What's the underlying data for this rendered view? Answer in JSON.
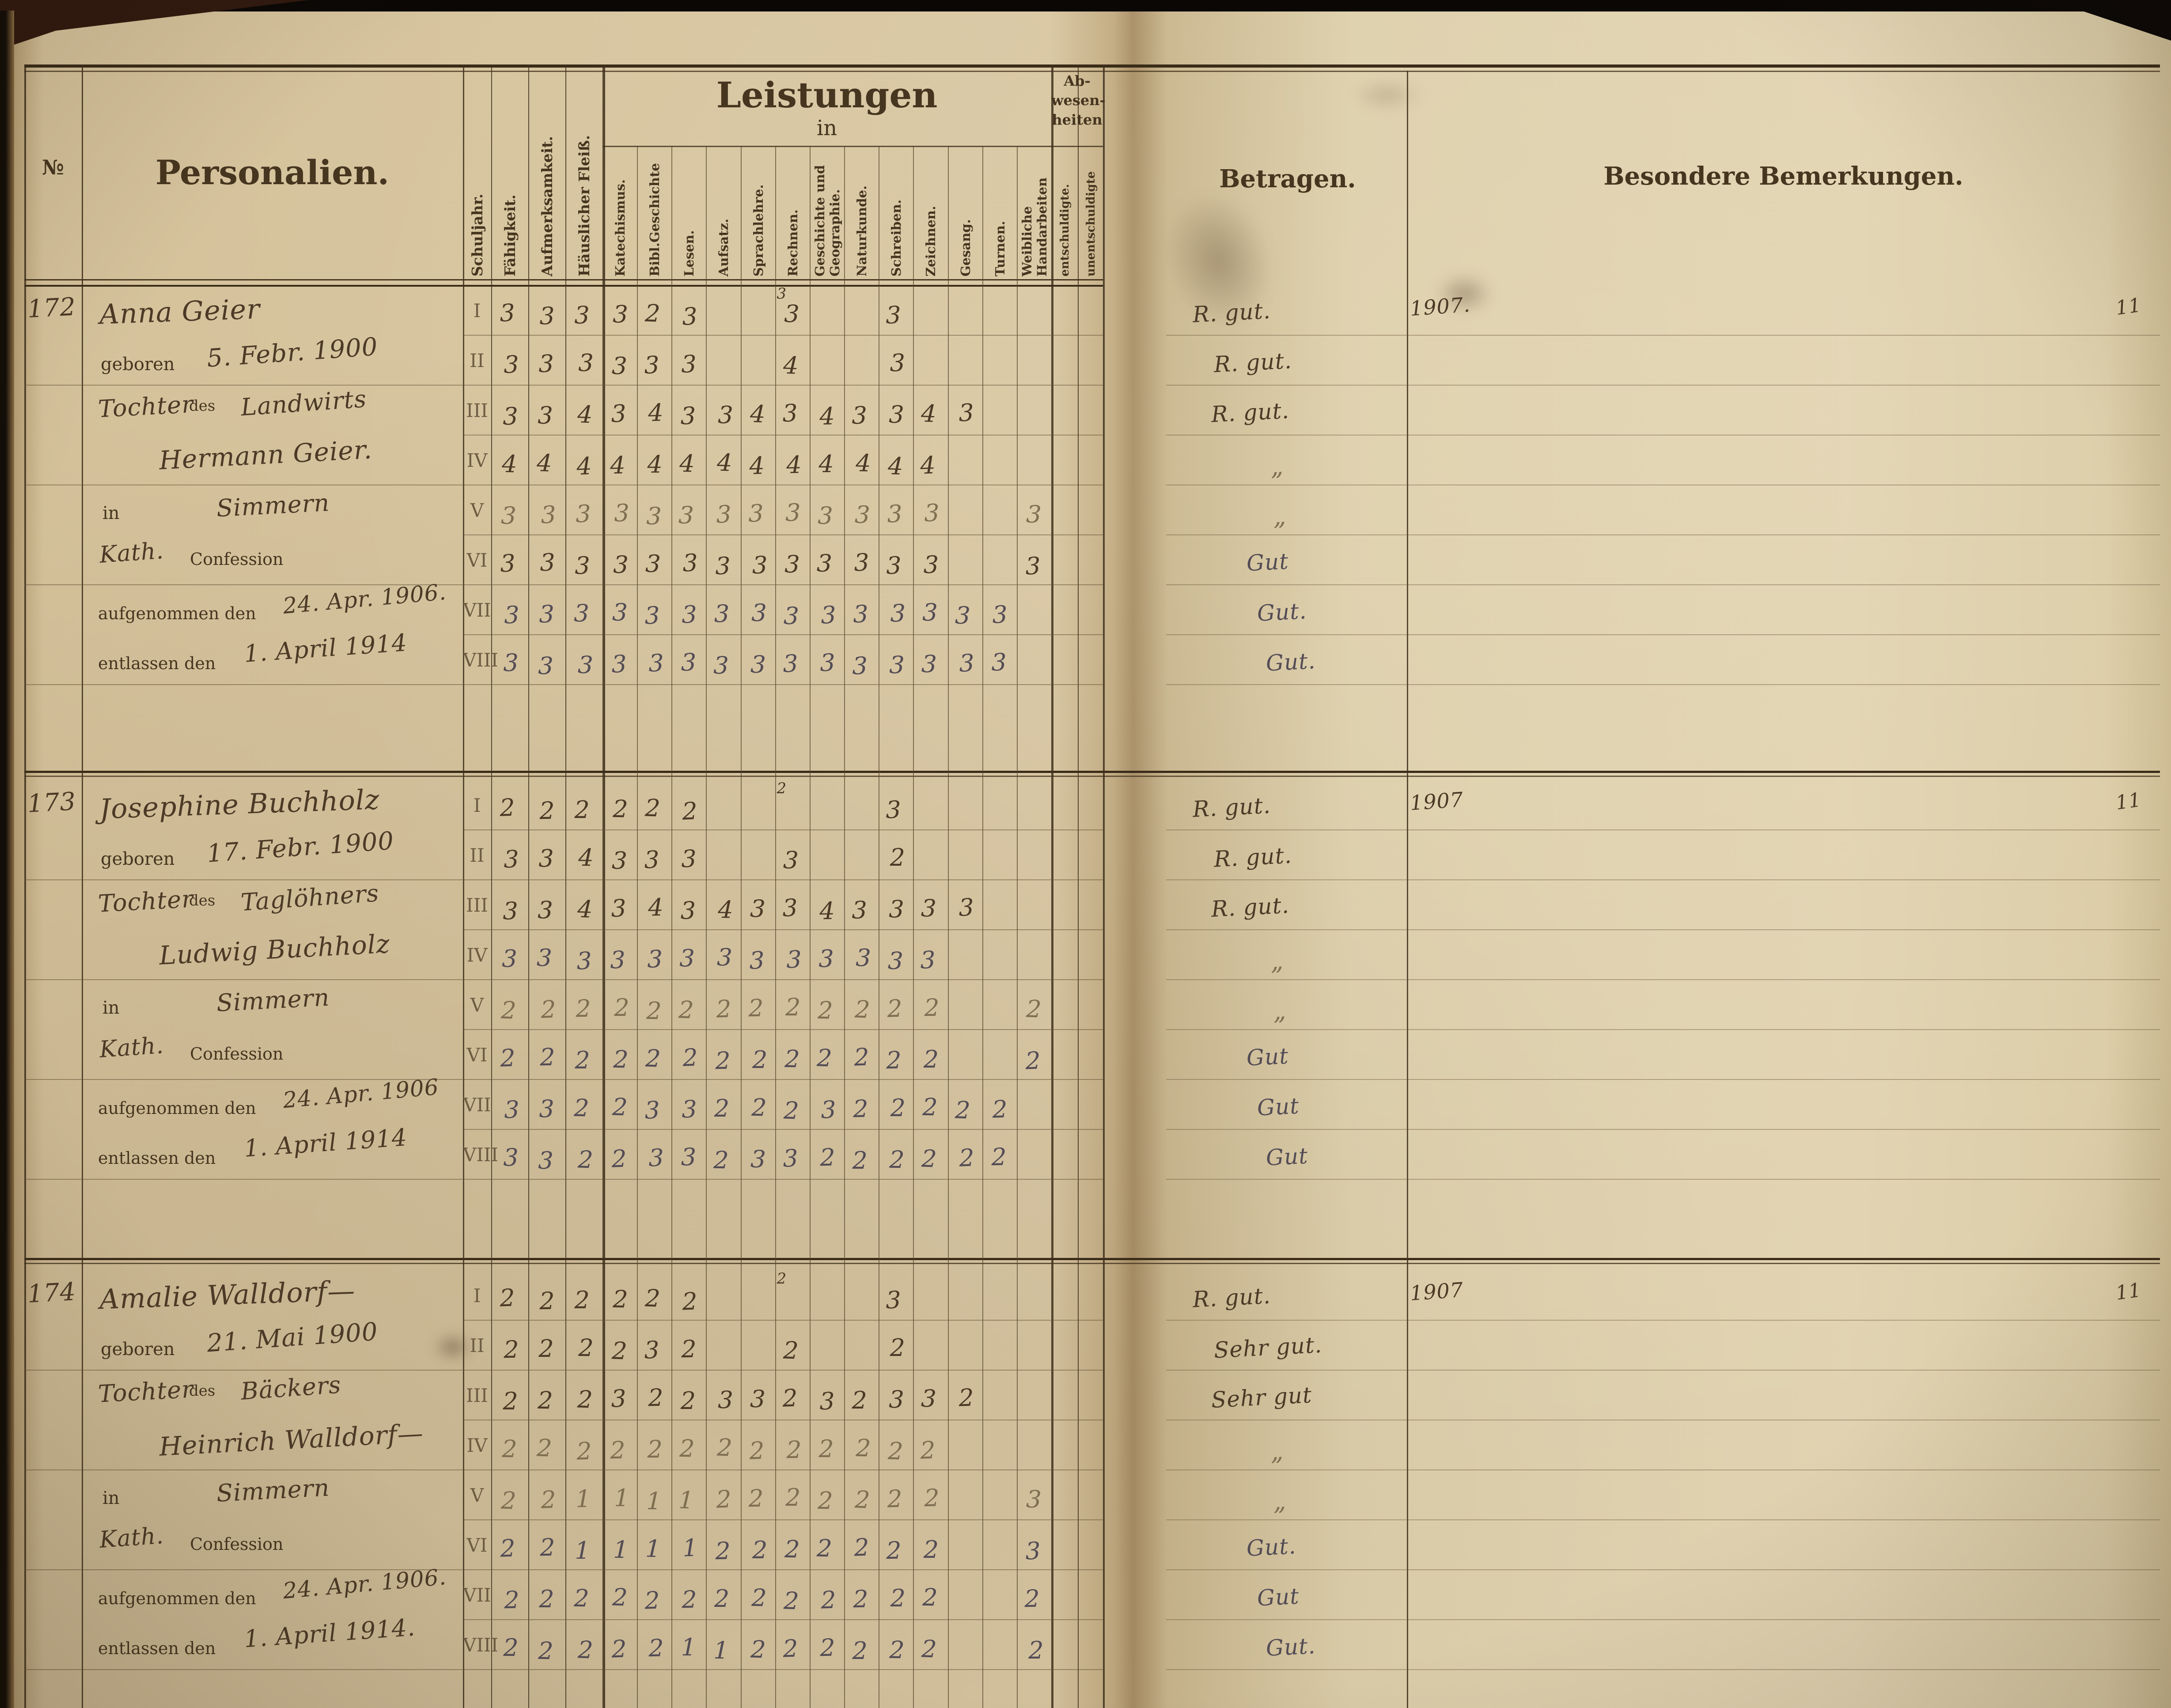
{
  "header": {
    "no": "№",
    "personalien": "Personalien.",
    "left_rotated": [
      "Schuljahr.",
      "Fähigkeit.",
      "Aufmerksamkeit.",
      "Häuslicher Fleiß."
    ],
    "leistungen": "Leistungen",
    "leistungen_in": "in",
    "subjects": [
      "Katechismus.",
      "Bibl.Geschichte",
      "Lesen.",
      "Aufsatz.",
      "Sprachlehre.",
      "Rechnen.",
      "Geschichte und Geographie.",
      "Naturkunde.",
      "Schreiben.",
      "Zeichnen.",
      "Gesang.",
      "Turnen.",
      "Weibliche Handarbeiten"
    ],
    "abwesenheiten_lines": [
      "Ab-",
      "wesen-",
      "heiten"
    ],
    "abw_subcolumns": [
      "entschuldigte.",
      "unentschuldigte"
    ],
    "betragen": "Betragen.",
    "bemerkungen": "Besondere Bemerkungen."
  },
  "block_labels": {
    "geboren": "geboren",
    "des": "des",
    "in": "in",
    "confession": "Confession",
    "aufgenommen": "aufgenommen den",
    "entlassen": "entlassen den"
  },
  "schuljahre": [
    "I",
    "II",
    "III",
    "IV",
    "V",
    "VI",
    "VII",
    "VIII"
  ],
  "colors": {
    "paper": "#d9c7a3",
    "paper_right": "#e0d2b0",
    "ink_sepia": "#4c3926",
    "ink_slate": "#534c55",
    "ink_faded": "#806e52",
    "print": "#46351f",
    "line": "#5f4c30"
  },
  "students": [
    {
      "no": "172",
      "name": "Anna Geier",
      "geboren": "5. Febr. 1900",
      "kind": "Tochter",
      "beruf": "Landwirts",
      "vater": "Hermann Geier.",
      "ort": "Simmern",
      "konfession": "Kath.",
      "aufgenommen": "24. Apr. 1906.",
      "entlassen": "1. April 1914",
      "jahr_vermerk": "1907.",
      "rand_vermerk": "11",
      "betragen": [
        "R. gut.",
        "R. gut.",
        "R. gut.",
        "„",
        "„",
        "Gut",
        "Gut.",
        "Gut."
      ],
      "grades": [
        {
          "sj": "I",
          "ink": "sepia",
          "sup": {
            "col": 8,
            "v": "3"
          },
          "cells": [
            "3",
            "3",
            "3",
            "3",
            "2",
            "3",
            "",
            "",
            "3",
            "",
            "",
            "3",
            "",
            "",
            "",
            ""
          ]
        },
        {
          "sj": "II",
          "ink": "sepia",
          "cells": [
            "3",
            "3",
            "3",
            "3",
            "3",
            "3",
            "",
            "",
            "4",
            "",
            "",
            "3",
            "",
            "",
            "",
            ""
          ]
        },
        {
          "sj": "III",
          "ink": "sepia",
          "cells": [
            "3",
            "3",
            "4",
            "3",
            "4",
            "3",
            "3",
            "4",
            "3",
            "4",
            "3",
            "3",
            "4",
            "3",
            "",
            ""
          ]
        },
        {
          "sj": "IV",
          "ink": "sepia",
          "cells": [
            "4",
            "4",
            "4",
            "4",
            "4",
            "4",
            "4",
            "4",
            "4",
            "4",
            "4",
            "4",
            "4",
            "",
            "",
            ""
          ]
        },
        {
          "sj": "V",
          "ink": "faded",
          "cells": [
            "3",
            "3",
            "3",
            "3",
            "3",
            "3",
            "3",
            "3",
            "3",
            "3",
            "3",
            "3",
            "3",
            "",
            "",
            "3"
          ]
        },
        {
          "sj": "VI",
          "ink": "sepia",
          "cells": [
            "3",
            "3",
            "3",
            "3",
            "3",
            "3",
            "3",
            "3",
            "3",
            "3",
            "3",
            "3",
            "3",
            "",
            "",
            "3"
          ]
        },
        {
          "sj": "VII",
          "ink": "slate",
          "cells": [
            "3",
            "3",
            "3",
            "3",
            "3",
            "3",
            "3",
            "3",
            "3",
            "3",
            "3",
            "3",
            "3",
            "3",
            "3",
            ""
          ]
        },
        {
          "sj": "VIII",
          "ink": "slate",
          "cells": [
            "3",
            "3",
            "3",
            "3",
            "3",
            "3",
            "3",
            "3",
            "3",
            "3",
            "3",
            "3",
            "3",
            "3",
            "3",
            ""
          ]
        }
      ]
    },
    {
      "no": "173",
      "name": "Josephine Buchholz",
      "geboren": "17. Febr. 1900",
      "kind": "Tochter",
      "beruf": "Taglöhners",
      "vater": "Ludwig Buchholz",
      "ort": "Simmern",
      "konfession": "Kath.",
      "aufgenommen": "24. Apr. 1906",
      "entlassen": "1. April 1914",
      "jahr_vermerk": "1907",
      "rand_vermerk": "11",
      "betragen": [
        "R. gut.",
        "R. gut.",
        "R. gut.",
        "„",
        "„",
        "Gut",
        "Gut",
        "Gut"
      ],
      "grades": [
        {
          "sj": "I",
          "ink": "sepia",
          "sup": {
            "col": 8,
            "v": "2"
          },
          "cells": [
            "2",
            "2",
            "2",
            "2",
            "2",
            "2",
            "",
            "",
            "",
            "",
            "",
            "3",
            "",
            "",
            "",
            ""
          ]
        },
        {
          "sj": "II",
          "ink": "sepia",
          "cells": [
            "3",
            "3",
            "4",
            "3",
            "3",
            "3",
            "",
            "",
            "3",
            "",
            "",
            "2",
            "",
            "",
            "",
            ""
          ]
        },
        {
          "sj": "III",
          "ink": "sepia",
          "cells": [
            "3",
            "3",
            "4",
            "3",
            "4",
            "3",
            "4",
            "3",
            "3",
            "4",
            "3",
            "3",
            "3",
            "3",
            "",
            ""
          ]
        },
        {
          "sj": "IV",
          "ink": "slate",
          "cells": [
            "3",
            "3",
            "3",
            "3",
            "3",
            "3",
            "3",
            "3",
            "3",
            "3",
            "3",
            "3",
            "3",
            "",
            "",
            ""
          ]
        },
        {
          "sj": "V",
          "ink": "faded",
          "cells": [
            "2",
            "2",
            "2",
            "2",
            "2",
            "2",
            "2",
            "2",
            "2",
            "2",
            "2",
            "2",
            "2",
            "",
            "",
            "2"
          ]
        },
        {
          "sj": "VI",
          "ink": "slate",
          "cells": [
            "2",
            "2",
            "2",
            "2",
            "2",
            "2",
            "2",
            "2",
            "2",
            "2",
            "2",
            "2",
            "2",
            "",
            "",
            "2"
          ]
        },
        {
          "sj": "VII",
          "ink": "slate",
          "cells": [
            "3",
            "3",
            "2",
            "2",
            "3",
            "3",
            "2",
            "2",
            "2",
            "3",
            "2",
            "2",
            "2",
            "2",
            "2",
            ""
          ]
        },
        {
          "sj": "VIII",
          "ink": "slate",
          "cells": [
            "3",
            "3",
            "2",
            "2",
            "3",
            "3",
            "2",
            "3",
            "3",
            "2",
            "2",
            "2",
            "2",
            "2",
            "2",
            ""
          ]
        }
      ]
    },
    {
      "no": "174",
      "name": "Amalie Walldorf—",
      "geboren": "21. Mai 1900",
      "kind": "Tochter",
      "beruf": "Bäckers",
      "vater": "Heinrich Walldorf—",
      "ort": "Simmern",
      "konfession": "Kath.",
      "aufgenommen": "24. Apr. 1906.",
      "entlassen": "1. April 1914.",
      "jahr_vermerk": "1907",
      "rand_vermerk": "11",
      "betragen": [
        "R. gut.",
        "Sehr gut.",
        "Sehr gut",
        "„",
        "„",
        "Gut.",
        "Gut",
        "Gut."
      ],
      "grades": [
        {
          "sj": "I",
          "ink": "sepia",
          "sup": {
            "col": 8,
            "v": "2"
          },
          "cells": [
            "2",
            "2",
            "2",
            "2",
            "2",
            "2",
            "",
            "",
            "",
            "",
            "",
            "3",
            "",
            "",
            "",
            ""
          ]
        },
        {
          "sj": "II",
          "ink": "sepia",
          "cells": [
            "2",
            "2",
            "2",
            "2",
            "3",
            "2",
            "",
            "",
            "2",
            "",
            "",
            "2",
            "",
            "",
            "",
            ""
          ]
        },
        {
          "sj": "III",
          "ink": "sepia",
          "cells": [
            "2",
            "2",
            "2",
            "3",
            "2",
            "2",
            "3",
            "3",
            "2",
            "3",
            "2",
            "3",
            "3",
            "2",
            "",
            ""
          ]
        },
        {
          "sj": "IV",
          "ink": "faded",
          "cells": [
            "2",
            "2",
            "2",
            "2",
            "2",
            "2",
            "2",
            "2",
            "2",
            "2",
            "2",
            "2",
            "2",
            "",
            "",
            ""
          ]
        },
        {
          "sj": "V",
          "ink": "faded",
          "cells": [
            "2",
            "2",
            "1",
            "1",
            "1",
            "1",
            "2",
            "2",
            "2",
            "2",
            "2",
            "2",
            "2",
            "",
            "",
            "3"
          ]
        },
        {
          "sj": "VI",
          "ink": "slate",
          "cells": [
            "2",
            "2",
            "1",
            "1",
            "1",
            "1",
            "2",
            "2",
            "2",
            "2",
            "2",
            "2",
            "2",
            "",
            "",
            "3"
          ]
        },
        {
          "sj": "VII",
          "ink": "slate",
          "cells": [
            "2",
            "2",
            "2",
            "2",
            "2",
            "2",
            "2",
            "2",
            "2",
            "2",
            "2",
            "2",
            "2",
            "",
            "",
            "2"
          ]
        },
        {
          "sj": "VIII",
          "ink": "slate",
          "cells": [
            "2",
            "2",
            "2",
            "2",
            "2",
            "1",
            "1",
            "2",
            "2",
            "2",
            "2",
            "2",
            "2",
            "",
            "",
            "2"
          ]
        }
      ]
    }
  ]
}
